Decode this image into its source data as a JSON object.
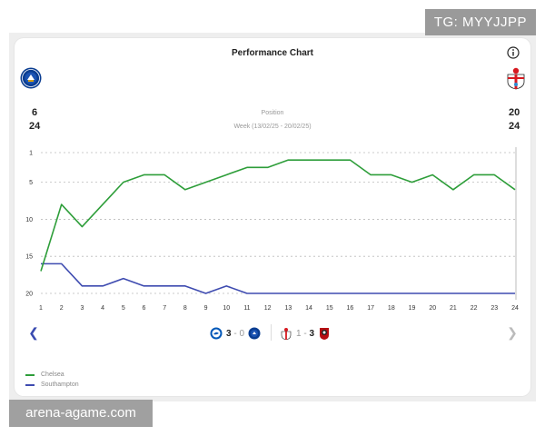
{
  "watermarks": {
    "top_right": "TG: MYYJJPP",
    "bottom_left": "arena-agame.com"
  },
  "header": {
    "title": "Performance Chart",
    "info_icon": "info-icon"
  },
  "teams": {
    "left": {
      "name": "Chelsea",
      "position_now": "6",
      "position_total": "24",
      "color": "#2e9e3a"
    },
    "right": {
      "name": "Southampton",
      "position_now": "20",
      "position_total": "24",
      "color": "#3e4bb0"
    }
  },
  "subheader": {
    "label": "Position",
    "week_range": "Week (13/02/25 - 20/02/25)"
  },
  "chart_data": {
    "type": "line",
    "title": "Performance Chart",
    "ylabel": "Position",
    "xlabel": "Week (13/02/25 - 20/02/25)",
    "x": [
      1,
      2,
      3,
      4,
      5,
      6,
      7,
      8,
      9,
      10,
      11,
      12,
      13,
      14,
      15,
      16,
      17,
      18,
      19,
      20,
      21,
      22,
      23,
      24
    ],
    "ylim": [
      20,
      1
    ],
    "yticks": [
      1,
      5,
      10,
      15,
      20
    ],
    "series": [
      {
        "name": "Chelsea",
        "color": "#2e9e3a",
        "values": [
          17,
          8,
          11,
          8,
          5,
          4,
          4,
          6,
          5,
          4,
          3,
          3,
          2,
          2,
          2,
          2,
          4,
          4,
          5,
          4,
          6,
          4,
          4,
          6
        ]
      },
      {
        "name": "Southampton",
        "color": "#3e4bb0",
        "values": [
          16,
          16,
          19,
          19,
          18,
          19,
          19,
          19,
          20,
          19,
          20,
          20,
          20,
          20,
          20,
          20,
          20,
          20,
          20,
          20,
          20,
          20,
          20,
          20
        ]
      }
    ],
    "legend_position": "bottom-left"
  },
  "matches": [
    {
      "home_icon": "brighton-crest-icon",
      "home_score": "3",
      "away_score": "0",
      "away_icon": "chelsea-crest-icon",
      "separator": "-"
    },
    {
      "home_icon": "southampton-crest-icon",
      "home_score": "1",
      "away_score": "3",
      "away_icon": "bournemouth-crest-icon",
      "separator": "-"
    }
  ],
  "legend": [
    {
      "label": "Chelsea",
      "color": "#2e9e3a"
    },
    {
      "label": "Southampton",
      "color": "#3e4bb0"
    }
  ],
  "nav": {
    "prev_icon": "chevron-left-icon",
    "next_icon": "chevron-right-icon"
  }
}
